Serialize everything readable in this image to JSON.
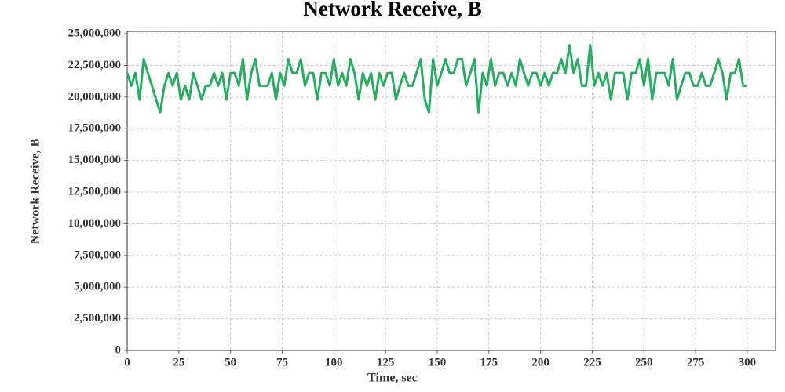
{
  "chart_data": {
    "type": "line",
    "title": "Network Receive, B",
    "xlabel": "Time, sec",
    "ylabel": "Network Receive, B",
    "x": [
      0,
      2,
      4,
      6,
      8,
      10,
      12,
      14,
      16,
      18,
      20,
      22,
      24,
      26,
      28,
      30,
      32,
      34,
      36,
      38,
      40,
      42,
      44,
      46,
      48,
      50,
      52,
      54,
      56,
      58,
      60,
      62,
      64,
      66,
      68,
      70,
      72,
      74,
      76,
      78,
      80,
      82,
      84,
      86,
      88,
      90,
      92,
      94,
      96,
      98,
      100,
      102,
      104,
      106,
      108,
      110,
      112,
      114,
      116,
      118,
      120,
      122,
      124,
      126,
      128,
      130,
      132,
      134,
      136,
      138,
      140,
      142,
      144,
      146,
      148,
      150,
      152,
      154,
      156,
      158,
      160,
      162,
      164,
      166,
      168,
      170,
      172,
      174,
      176,
      178,
      180,
      182,
      184,
      186,
      188,
      190,
      192,
      194,
      196,
      198,
      200,
      202,
      204,
      206,
      208,
      210,
      212,
      214,
      216,
      218,
      220,
      222,
      224,
      226,
      228,
      230,
      232,
      234,
      236,
      238,
      240,
      242,
      244,
      246,
      248,
      250,
      252,
      254,
      256,
      258,
      260,
      262,
      264,
      266,
      268,
      270,
      272,
      274,
      276,
      278,
      280,
      282,
      284,
      286,
      288,
      290,
      292,
      294,
      296,
      298,
      300
    ],
    "series": [
      {
        "name": "Network Receive, B",
        "color": "#27ae60",
        "values": [
          21900000,
          20900000,
          21900000,
          19800000,
          23000000,
          21900000,
          20900000,
          19800000,
          18800000,
          20900000,
          21900000,
          20900000,
          21900000,
          19800000,
          20900000,
          19800000,
          21900000,
          20900000,
          19800000,
          20900000,
          20900000,
          21900000,
          20900000,
          21900000,
          19800000,
          21900000,
          21900000,
          20900000,
          23000000,
          19800000,
          21900000,
          23000000,
          20900000,
          20900000,
          20900000,
          21900000,
          19800000,
          21900000,
          20900000,
          23000000,
          21900000,
          21900000,
          23000000,
          20900000,
          21900000,
          21900000,
          19800000,
          21900000,
          21900000,
          20900000,
          23000000,
          20900000,
          21900000,
          20900000,
          23000000,
          21900000,
          19800000,
          21900000,
          20900000,
          21900000,
          19800000,
          21900000,
          20900000,
          21900000,
          21900000,
          19800000,
          20900000,
          21900000,
          20900000,
          20900000,
          21900000,
          23000000,
          19800000,
          18800000,
          23000000,
          20900000,
          21900000,
          23000000,
          21900000,
          21900000,
          23000000,
          23000000,
          20900000,
          21900000,
          23000000,
          18800000,
          21900000,
          20900000,
          23000000,
          20900000,
          21900000,
          21900000,
          20900000,
          21900000,
          20900000,
          23000000,
          21900000,
          20900000,
          21900000,
          21900000,
          20900000,
          21900000,
          20900000,
          21900000,
          21900000,
          23000000,
          21900000,
          24100000,
          21900000,
          23000000,
          20900000,
          20900000,
          24100000,
          20900000,
          21900000,
          20900000,
          21900000,
          19800000,
          21900000,
          21900000,
          21900000,
          19800000,
          21900000,
          21900000,
          23000000,
          20900000,
          23000000,
          19800000,
          21900000,
          21900000,
          21900000,
          20900000,
          23000000,
          19800000,
          20900000,
          21900000,
          21900000,
          20900000,
          20900000,
          21900000,
          20900000,
          20900000,
          21900000,
          23000000,
          21900000,
          19800000,
          21900000,
          21900000,
          23000000,
          20900000,
          20900000
        ]
      }
    ],
    "xlim": [
      0,
      313.7
    ],
    "ylim": [
      0,
      25190000
    ],
    "xticks": [
      0,
      25,
      50,
      75,
      100,
      125,
      150,
      175,
      200,
      225,
      250,
      275,
      300
    ],
    "yticks": [
      0,
      {
        "value": 2500000,
        "label": "2,500,000"
      },
      {
        "value": 5000000,
        "label": "5,000,000"
      },
      {
        "value": 7500000,
        "label": "7,500,000"
      },
      {
        "value": 10000000,
        "label": "10,000,000"
      },
      {
        "value": 12500000,
        "label": "12,500,000"
      },
      {
        "value": 15000000,
        "label": "15,000,000"
      },
      {
        "value": 17500000,
        "label": "17,500,000"
      },
      {
        "value": 20000000,
        "label": "20,000,000"
      },
      {
        "value": 22500000,
        "label": "22,500,000"
      },
      {
        "value": 25000000,
        "label": "25,000,000"
      }
    ],
    "grid": true
  }
}
